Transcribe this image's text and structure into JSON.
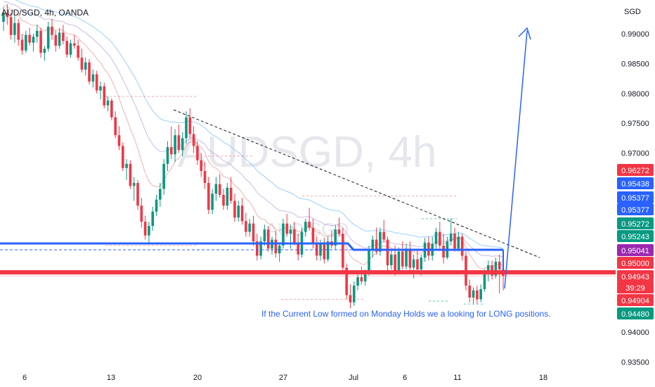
{
  "header": {
    "symbol": "AUD/SGD, 4h, OANDA"
  },
  "watermark": {
    "main": "AUDSGD, 4h",
    "sub": "AUD/SGD"
  },
  "price_axis": {
    "currency": "SGD",
    "ticks": [
      "0.99000",
      "0.98500",
      "0.98000",
      "0.97500",
      "0.97000",
      "0.94000",
      "0.93500"
    ]
  },
  "time_axis": {
    "ticks": [
      "6",
      "13",
      "20",
      "27",
      "Jul",
      "6",
      "11",
      "18"
    ]
  },
  "price_tags": [
    {
      "label": "0.96272",
      "color": "#f23645"
    },
    {
      "label": "0.95438",
      "color": "#2962ff"
    },
    {
      "label": "0.95377",
      "color": "#2962ff"
    },
    {
      "label": "0.95377",
      "color": "#2962ff"
    },
    {
      "label": "0.95272",
      "color": "#089981"
    },
    {
      "label": "0.95243",
      "color": "#089981"
    },
    {
      "label": "0.95041",
      "color": "#9c27b0"
    },
    {
      "label": "0.95000",
      "color": "#f23645"
    },
    {
      "label": "0.94943",
      "color": "#f23645"
    },
    {
      "label": "39:29",
      "color": "#f23645"
    },
    {
      "label": "0.94904",
      "color": "#f23645"
    },
    {
      "label": "0.94480",
      "color": "#089981"
    }
  ],
  "annotation": {
    "text": "If the Current Low formed on Monday Holds we a looking for LONG positions."
  },
  "colors": {
    "up": "#089981",
    "down": "#f23645",
    "blue": "#2962ff",
    "red": "#f23645"
  },
  "chart_data": {
    "type": "candlestick",
    "symbol": "AUD/SGD",
    "timeframe": "4h",
    "ylim": [
      0.935,
      0.993
    ],
    "ohlc": [
      [
        0.992,
        0.9945,
        0.9905,
        0.9935
      ],
      [
        0.9935,
        0.995,
        0.9915,
        0.9928
      ],
      [
        0.9928,
        0.9935,
        0.989,
        0.9898
      ],
      [
        0.9898,
        0.993,
        0.9885,
        0.9918
      ],
      [
        0.9918,
        0.9925,
        0.988,
        0.989
      ],
      [
        0.989,
        0.99,
        0.9865,
        0.9872
      ],
      [
        0.9872,
        0.9905,
        0.9868,
        0.9898
      ],
      [
        0.9898,
        0.991,
        0.988,
        0.9885
      ],
      [
        0.9885,
        0.99,
        0.987,
        0.9895
      ],
      [
        0.9895,
        0.9915,
        0.9885,
        0.9905
      ],
      [
        0.9905,
        0.991,
        0.986,
        0.9868
      ],
      [
        0.9868,
        0.988,
        0.9855,
        0.9875
      ],
      [
        0.9875,
        0.992,
        0.987,
        0.9912
      ],
      [
        0.9912,
        0.9925,
        0.989,
        0.9898
      ],
      [
        0.9898,
        0.9905,
        0.987,
        0.988
      ],
      [
        0.988,
        0.991,
        0.9875,
        0.9902
      ],
      [
        0.9902,
        0.9915,
        0.9882,
        0.9888
      ],
      [
        0.9888,
        0.9895,
        0.986,
        0.9865
      ],
      [
        0.9865,
        0.989,
        0.986,
        0.9884
      ],
      [
        0.9884,
        0.9898,
        0.9875,
        0.988
      ],
      [
        0.988,
        0.989,
        0.9855,
        0.986
      ],
      [
        0.986,
        0.9875,
        0.9835,
        0.984
      ],
      [
        0.984,
        0.986,
        0.983,
        0.9852
      ],
      [
        0.9852,
        0.9858,
        0.9815,
        0.982
      ],
      [
        0.982,
        0.984,
        0.981,
        0.9832
      ],
      [
        0.9832,
        0.9838,
        0.98,
        0.9805
      ],
      [
        0.9805,
        0.982,
        0.979,
        0.9812
      ],
      [
        0.9812,
        0.9818,
        0.9775,
        0.978
      ],
      [
        0.978,
        0.9795,
        0.977,
        0.9788
      ],
      [
        0.9788,
        0.9792,
        0.9755,
        0.976
      ],
      [
        0.976,
        0.977,
        0.9725,
        0.973
      ],
      [
        0.973,
        0.9745,
        0.9705,
        0.9712
      ],
      [
        0.9712,
        0.9718,
        0.967,
        0.9675
      ],
      [
        0.9675,
        0.969,
        0.9655,
        0.9682
      ],
      [
        0.9682,
        0.9688,
        0.964,
        0.9645
      ],
      [
        0.9645,
        0.966,
        0.962,
        0.965
      ],
      [
        0.965,
        0.9655,
        0.9605,
        0.9612
      ],
      [
        0.9612,
        0.9625,
        0.9575,
        0.9585
      ],
      [
        0.9585,
        0.9595,
        0.9555,
        0.9562
      ],
      [
        0.9562,
        0.9585,
        0.9548,
        0.9578
      ],
      [
        0.9578,
        0.961,
        0.957,
        0.9602
      ],
      [
        0.9602,
        0.963,
        0.9595,
        0.9622
      ],
      [
        0.9622,
        0.965,
        0.961,
        0.964
      ],
      [
        0.964,
        0.969,
        0.963,
        0.9682
      ],
      [
        0.9682,
        0.972,
        0.967,
        0.971
      ],
      [
        0.971,
        0.9745,
        0.969,
        0.9698
      ],
      [
        0.9698,
        0.974,
        0.9685,
        0.973
      ],
      [
        0.973,
        0.9748,
        0.97,
        0.9705
      ],
      [
        0.9705,
        0.9735,
        0.9695,
        0.9725
      ],
      [
        0.9725,
        0.977,
        0.9715,
        0.976
      ],
      [
        0.976,
        0.9775,
        0.9725,
        0.9732
      ],
      [
        0.9732,
        0.9745,
        0.97,
        0.9712
      ],
      [
        0.9712,
        0.972,
        0.968,
        0.9688
      ],
      [
        0.9688,
        0.97,
        0.966,
        0.967
      ],
      [
        0.967,
        0.9685,
        0.964,
        0.965
      ],
      [
        0.965,
        0.966,
        0.9598,
        0.9605
      ],
      [
        0.9605,
        0.964,
        0.9598,
        0.9632
      ],
      [
        0.9632,
        0.966,
        0.962,
        0.9648
      ],
      [
        0.9648,
        0.9665,
        0.9625,
        0.963
      ],
      [
        0.963,
        0.964,
        0.9605,
        0.9612
      ],
      [
        0.9612,
        0.965,
        0.9605,
        0.9642
      ],
      [
        0.9642,
        0.966,
        0.9615,
        0.962
      ],
      [
        0.962,
        0.9632,
        0.9585,
        0.9592
      ],
      [
        0.9592,
        0.962,
        0.9585,
        0.9612
      ],
      [
        0.9612,
        0.9625,
        0.958,
        0.9586
      ],
      [
        0.9586,
        0.96,
        0.956,
        0.9568
      ],
      [
        0.9568,
        0.959,
        0.956,
        0.9582
      ],
      [
        0.9582,
        0.9595,
        0.9545,
        0.9552
      ],
      [
        0.9552,
        0.9565,
        0.952,
        0.9528
      ],
      [
        0.9528,
        0.956,
        0.9522,
        0.9552
      ],
      [
        0.9552,
        0.958,
        0.9545,
        0.9572
      ],
      [
        0.9572,
        0.9578,
        0.9535,
        0.954
      ],
      [
        0.954,
        0.956,
        0.953,
        0.9555
      ],
      [
        0.9555,
        0.957,
        0.9525,
        0.9532
      ],
      [
        0.9532,
        0.955,
        0.9518,
        0.9545
      ],
      [
        0.9545,
        0.959,
        0.954,
        0.9582
      ],
      [
        0.9582,
        0.9598,
        0.956,
        0.9565
      ],
      [
        0.9565,
        0.958,
        0.954,
        0.9572
      ],
      [
        0.9572,
        0.9585,
        0.9545,
        0.955
      ],
      [
        0.955,
        0.9565,
        0.952,
        0.953
      ],
      [
        0.953,
        0.9575,
        0.9525,
        0.9568
      ],
      [
        0.9568,
        0.959,
        0.956,
        0.9585
      ],
      [
        0.9585,
        0.9608,
        0.957,
        0.9575
      ],
      [
        0.9575,
        0.959,
        0.954,
        0.9548
      ],
      [
        0.9548,
        0.956,
        0.952,
        0.9528
      ],
      [
        0.9528,
        0.9555,
        0.952,
        0.9548
      ],
      [
        0.9548,
        0.9558,
        0.9515,
        0.9522
      ],
      [
        0.9522,
        0.956,
        0.9518,
        0.9552
      ],
      [
        0.9552,
        0.957,
        0.954,
        0.9545
      ],
      [
        0.9545,
        0.958,
        0.9538,
        0.9572
      ],
      [
        0.9572,
        0.9592,
        0.956,
        0.9565
      ],
      [
        0.9565,
        0.9575,
        0.95,
        0.9508
      ],
      [
        0.9508,
        0.9515,
        0.9455,
        0.9462
      ],
      [
        0.9462,
        0.948,
        0.944,
        0.945
      ],
      [
        0.945,
        0.9485,
        0.9444,
        0.9478
      ],
      [
        0.9478,
        0.95,
        0.947,
        0.9492
      ],
      [
        0.9492,
        0.951,
        0.948,
        0.9485
      ],
      [
        0.9485,
        0.9505,
        0.9478,
        0.95
      ],
      [
        0.95,
        0.9545,
        0.9495,
        0.9538
      ],
      [
        0.9538,
        0.9562,
        0.9525,
        0.9555
      ],
      [
        0.9555,
        0.9575,
        0.953,
        0.9535
      ],
      [
        0.9535,
        0.9575,
        0.9528,
        0.9568
      ],
      [
        0.9568,
        0.9588,
        0.955,
        0.9555
      ],
      [
        0.9555,
        0.956,
        0.95,
        0.9512
      ],
      [
        0.9512,
        0.954,
        0.9505,
        0.953
      ],
      [
        0.953,
        0.9545,
        0.9495,
        0.9502
      ],
      [
        0.9502,
        0.9542,
        0.9498,
        0.9535
      ],
      [
        0.9535,
        0.9552,
        0.9505,
        0.951
      ],
      [
        0.951,
        0.9548,
        0.9505,
        0.954
      ],
      [
        0.954,
        0.9552,
        0.95,
        0.9508
      ],
      [
        0.9508,
        0.953,
        0.949,
        0.9522
      ],
      [
        0.9522,
        0.954,
        0.9498,
        0.9505
      ],
      [
        0.9505,
        0.953,
        0.9495,
        0.9525
      ],
      [
        0.9525,
        0.9558,
        0.9518,
        0.955
      ],
      [
        0.955,
        0.956,
        0.952,
        0.9528
      ],
      [
        0.9528,
        0.956,
        0.952,
        0.9548
      ],
      [
        0.9548,
        0.9575,
        0.954,
        0.9568
      ],
      [
        0.9568,
        0.9585,
        0.954,
        0.9545
      ],
      [
        0.9545,
        0.9565,
        0.9515,
        0.9525
      ],
      [
        0.9525,
        0.956,
        0.9522,
        0.9552
      ],
      [
        0.9552,
        0.959,
        0.9545,
        0.9565
      ],
      [
        0.9565,
        0.9575,
        0.9535,
        0.954
      ],
      [
        0.954,
        0.9568,
        0.9535,
        0.956
      ],
      [
        0.956,
        0.9565,
        0.952,
        0.9528
      ],
      [
        0.9528,
        0.9535,
        0.947,
        0.9478
      ],
      [
        0.9478,
        0.9488,
        0.945,
        0.9458
      ],
      [
        0.9458,
        0.9475,
        0.9448,
        0.947
      ],
      [
        0.947,
        0.9478,
        0.9448,
        0.9455
      ],
      [
        0.9455,
        0.948,
        0.945,
        0.9472
      ],
      [
        0.9472,
        0.9505,
        0.9468,
        0.9498
      ],
      [
        0.9498,
        0.952,
        0.9485,
        0.9512
      ],
      [
        0.9512,
        0.952,
        0.9488,
        0.9495
      ],
      [
        0.9495,
        0.9525,
        0.949,
        0.9518
      ],
      [
        0.9518,
        0.953,
        0.9465,
        0.9505
      ],
      [
        0.9505,
        0.9525,
        0.947,
        0.9494
      ]
    ],
    "annotations": [
      {
        "type": "resistance_zone",
        "price": 0.9515,
        "color": "blue"
      },
      {
        "type": "support_zone",
        "price": 0.9494,
        "color": "red"
      },
      {
        "type": "trendline",
        "from": [
          0.9775,
          "Jun 18"
        ],
        "to": [
          0.9512,
          "Jul 15"
        ]
      },
      {
        "type": "arrow",
        "direction": "up",
        "target": 0.99
      }
    ]
  }
}
